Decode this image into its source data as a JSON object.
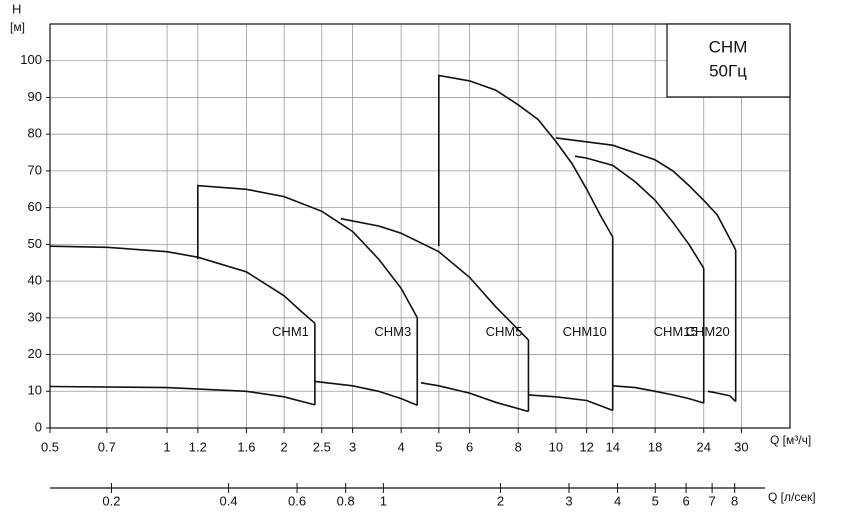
{
  "chart_data": {
    "type": "line",
    "title": "CHM",
    "subtitle": "50Гц",
    "y_label": "H",
    "y_unit": "[м]",
    "x_label": "Q [м³/ч]",
    "x2_label": "Q [л/сек]",
    "log_x": true,
    "grid": true,
    "xlim": [
      0.5,
      40
    ],
    "ylim": [
      0,
      110
    ],
    "xticks": [
      0.5,
      0.7,
      1,
      1.2,
      1.6,
      2,
      2.5,
      3,
      4,
      5,
      6,
      8,
      10,
      12,
      14,
      18,
      24,
      30
    ],
    "yticks": [
      0,
      10,
      20,
      30,
      40,
      50,
      60,
      70,
      80,
      90,
      100
    ],
    "x2lim": [
      0.139,
      11.1
    ],
    "x2ticks": [
      0.2,
      0.4,
      0.6,
      0.8,
      1,
      2,
      3,
      4,
      5,
      6,
      7,
      8
    ],
    "series": [
      {
        "name": "CHM1",
        "color": "#111111",
        "x": [
          0.5,
          0.7,
          1,
          1.2,
          1.6,
          2,
          2.2,
          2.4
        ],
        "values": [
          49.5,
          49.2,
          48,
          46.5,
          42.5,
          36,
          32,
          28.5
        ],
        "lower": {
          "x": [
            0.5,
            1,
            1.6,
            2,
            2.4
          ],
          "values": [
            11.3,
            11,
            10,
            8.5,
            6.3
          ]
        }
      },
      {
        "name": "CHM3",
        "color": "#111111",
        "x": [
          1.2,
          1.2,
          1.6,
          2,
          2.5,
          3,
          3.5,
          4,
          4.4
        ],
        "values": [
          46,
          66,
          65,
          63,
          59,
          53.5,
          46,
          38,
          30
        ],
        "lower": {
          "x": [
            2.4,
            3,
            3.5,
            4,
            4.4
          ],
          "values": [
            12.7,
            11.5,
            10,
            8,
            6.2
          ]
        }
      },
      {
        "name": "CHM5",
        "color": "#111111",
        "x": [
          2.8,
          3.5,
          4,
          5,
          6,
          7,
          8.5
        ],
        "values": [
          57,
          55,
          53,
          48,
          41,
          33,
          24
        ],
        "lower": {
          "x": [
            4.5,
            5,
            6,
            7,
            8.5
          ],
          "values": [
            12.3,
            11.5,
            9.5,
            7,
            4.5
          ]
        }
      },
      {
        "name": "CHM10",
        "color": "#111111",
        "x": [
          5,
          5,
          6,
          7,
          8,
          9,
          10,
          11,
          12,
          13,
          14
        ],
        "values": [
          49.5,
          96,
          94.5,
          92,
          88,
          84,
          78,
          72,
          65,
          58,
          52
        ],
        "lower": {
          "x": [
            8.5,
            10,
            12,
            14
          ],
          "values": [
            9,
            8.5,
            7.5,
            4.8
          ]
        }
      },
      {
        "name": "CHM15",
        "color": "#111111",
        "x": [
          11.2,
          12,
          14,
          16,
          18,
          20,
          22,
          24
        ],
        "values": [
          74,
          73.5,
          71.5,
          67,
          62,
          56,
          50,
          43.5
        ],
        "lower": {
          "x": [
            14,
            16,
            18,
            20,
            22,
            24
          ],
          "values": [
            11.5,
            11,
            10,
            9,
            8,
            6.8
          ]
        }
      },
      {
        "name": "CHM20",
        "color": "#111111",
        "x": [
          10,
          14,
          18,
          20,
          22,
          24,
          26,
          29
        ],
        "values": [
          79,
          77,
          73,
          70,
          66,
          62,
          58,
          48.5
        ],
        "lower": {
          "x": [
            24.6,
            26,
            28,
            29
          ],
          "values": [
            10,
            9.5,
            8.8,
            7.2
          ]
        }
      }
    ]
  }
}
